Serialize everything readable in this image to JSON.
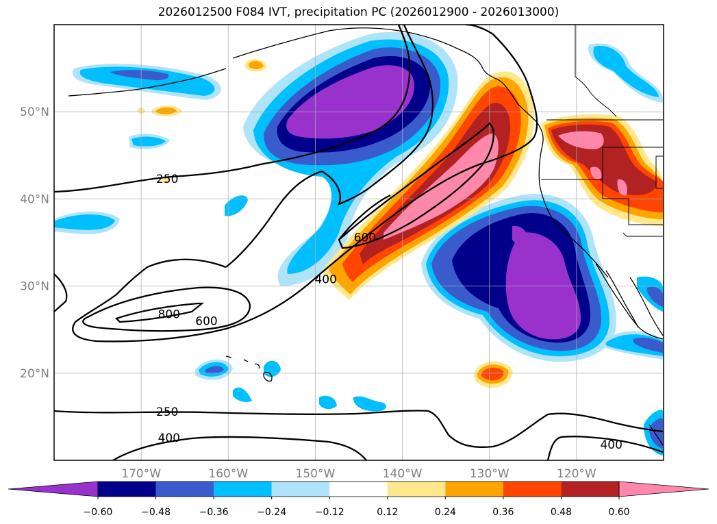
{
  "title": "2026012500 F084 IVT, precipitation PC (2026012900 - 2026013000)",
  "map": {
    "lon_range": [
      -180,
      -110
    ],
    "lat_range": [
      10,
      60
    ],
    "lat_ticks": [
      {
        "value": 20,
        "label": "20°N"
      },
      {
        "value": 30,
        "label": "30°N"
      },
      {
        "value": 40,
        "label": "40°N"
      },
      {
        "value": 50,
        "label": "50°N"
      }
    ],
    "lon_ticks": [
      {
        "value": -170,
        "label": "170°W"
      },
      {
        "value": -160,
        "label": "160°W"
      },
      {
        "value": -150,
        "label": "150°W"
      },
      {
        "value": -140,
        "label": "140°W"
      },
      {
        "value": -130,
        "label": "130°W"
      },
      {
        "value": -120,
        "label": "120°W"
      }
    ],
    "ivt_contour_labels": [
      {
        "text": "250",
        "lon": -167,
        "lat": 42.3
      },
      {
        "text": "250",
        "lon": -167,
        "lat": 15.6
      },
      {
        "text": "400",
        "lon": -166.8,
        "lat": 12.6
      },
      {
        "text": "400",
        "lon": -148.8,
        "lat": 30.8
      },
      {
        "text": "600",
        "lon": -144.3,
        "lat": 35.6
      },
      {
        "text": "600",
        "lon": -162.5,
        "lat": 26.0
      },
      {
        "text": "800",
        "lon": -166.8,
        "lat": 26.8
      },
      {
        "text": "400",
        "lon": -116,
        "lat": 11.8
      }
    ]
  },
  "colorbar": {
    "levels": [
      "−0.60",
      "−0.48",
      "−0.36",
      "−0.24",
      "−0.12",
      "0.12",
      "0.24",
      "0.36",
      "0.48",
      "0.60"
    ],
    "colors": [
      "#9932CC",
      "#00008B",
      "#3A5BCC",
      "#00BFFF",
      "#AEE3FA",
      "#FFFFFF",
      "#FFE88C",
      "#FFA500",
      "#FF4500",
      "#B22222",
      "#FF88AA"
    ]
  }
}
